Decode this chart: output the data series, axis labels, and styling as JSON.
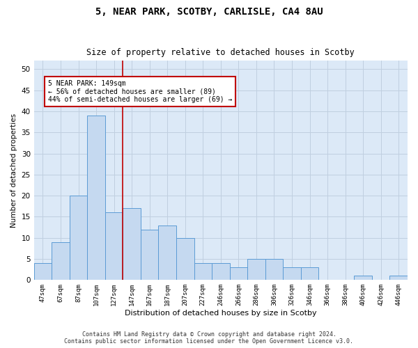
{
  "title": "5, NEAR PARK, SCOTBY, CARLISLE, CA4 8AU",
  "subtitle": "Size of property relative to detached houses in Scotby",
  "xlabel": "Distribution of detached houses by size in Scotby",
  "ylabel": "Number of detached properties",
  "categories": [
    "47sqm",
    "67sqm",
    "87sqm",
    "107sqm",
    "127sqm",
    "147sqm",
    "167sqm",
    "187sqm",
    "207sqm",
    "227sqm",
    "246sqm",
    "266sqm",
    "286sqm",
    "306sqm",
    "326sqm",
    "346sqm",
    "366sqm",
    "386sqm",
    "406sqm",
    "426sqm",
    "446sqm"
  ],
  "values": [
    4,
    9,
    20,
    39,
    16,
    17,
    12,
    13,
    10,
    4,
    4,
    3,
    5,
    5,
    3,
    3,
    0,
    0,
    1,
    0,
    1
  ],
  "bar_color": "#c5d9f0",
  "bar_edge_color": "#5b9bd5",
  "grid_color": "#c0cfe0",
  "background_color": "#dce9f7",
  "subject_label": "5 NEAR PARK: 149sqm",
  "annotation_line1": "← 56% of detached houses are smaller (89)",
  "annotation_line2": "44% of semi-detached houses are larger (69) →",
  "vline_color": "#c00000",
  "annotation_box_edge": "#c00000",
  "ylim": [
    0,
    52
  ],
  "yticks": [
    0,
    5,
    10,
    15,
    20,
    25,
    30,
    35,
    40,
    45,
    50
  ],
  "footer_line1": "Contains HM Land Registry data © Crown copyright and database right 2024.",
  "footer_line2": "Contains public sector information licensed under the Open Government Licence v3.0."
}
